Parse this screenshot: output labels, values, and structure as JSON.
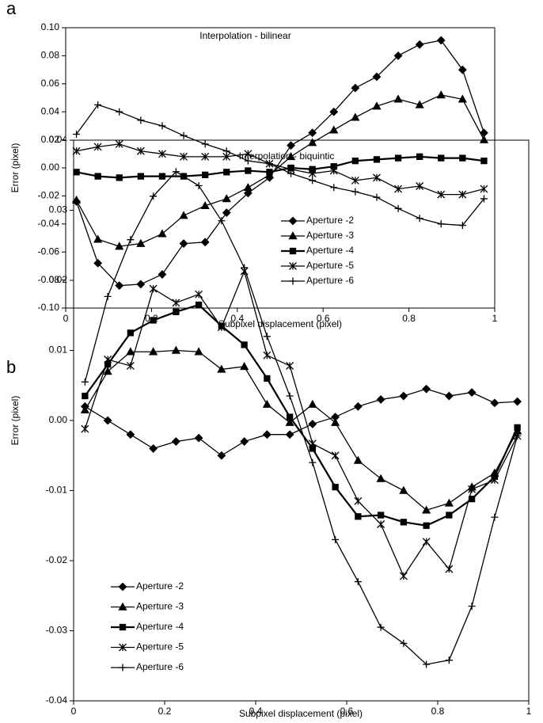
{
  "chart_data": [
    {
      "type": "line",
      "label": "a",
      "title": "Interpolation - bilinear",
      "xlabel": "Subpixel displacement (pixel)",
      "ylabel": "Error (pixel)",
      "x": [
        0.025,
        0.075,
        0.125,
        0.175,
        0.225,
        0.275,
        0.325,
        0.375,
        0.425,
        0.475,
        0.525,
        0.575,
        0.625,
        0.675,
        0.725,
        0.775,
        0.825,
        0.875,
        0.925,
        0.975
      ],
      "xlim": [
        0,
        1
      ],
      "xticks": [
        0,
        0.2,
        0.4,
        0.6,
        0.8,
        1
      ],
      "ylim": [
        -0.1,
        0.1
      ],
      "yticks": [
        {
          "value": -0.1,
          "label": "-0.10"
        },
        -0.08,
        -0.06,
        -0.04,
        -0.02,
        {
          "value": 0,
          "label": "0.00"
        },
        0.02,
        0.04,
        0.06,
        0.08,
        {
          "value": 0.1,
          "label": "0.10"
        }
      ],
      "legend": "center right",
      "grid": false,
      "series": [
        {
          "name": "Aperture -2",
          "color": "#000000",
          "marker": "diamond",
          "values": [
            -0.024,
            -0.068,
            -0.084,
            -0.083,
            -0.076,
            -0.054,
            -0.053,
            -0.032,
            -0.018,
            -0.007,
            0.016,
            0.025,
            0.04,
            0.057,
            0.065,
            0.08,
            0.088,
            0.091,
            0.07,
            0.025
          ]
        },
        {
          "name": "Aperture -3",
          "color": "#000000",
          "marker": "triangle",
          "values": [
            -0.023,
            -0.051,
            -0.056,
            -0.054,
            -0.047,
            -0.034,
            -0.027,
            -0.022,
            -0.014,
            -0.005,
            0.008,
            0.018,
            0.027,
            0.036,
            0.044,
            0.049,
            0.045,
            0.052,
            0.049,
            0.02
          ]
        },
        {
          "name": "Aperture -4",
          "color": "#000000",
          "marker": "square",
          "values": [
            -0.003,
            -0.006,
            -0.007,
            -0.006,
            -0.006,
            -0.006,
            -0.005,
            -0.003,
            -0.002,
            -0.003,
            0.0,
            -0.001,
            0.001,
            0.005,
            0.006,
            0.007,
            0.008,
            0.007,
            0.007,
            0.005
          ]
        },
        {
          "name": "Aperture -5",
          "color": "#000000",
          "marker": "asterisk",
          "values": [
            0.012,
            0.015,
            0.017,
            0.012,
            0.01,
            0.008,
            0.008,
            0.008,
            0.01,
            0.003,
            -0.001,
            -0.004,
            -0.002,
            -0.009,
            -0.007,
            -0.015,
            -0.013,
            -0.019,
            -0.019,
            -0.015
          ]
        },
        {
          "name": "Aperture -6",
          "color": "#000000",
          "marker": "plus",
          "values": [
            0.024,
            0.045,
            0.04,
            0.034,
            0.03,
            0.023,
            0.017,
            0.012,
            0.005,
            0.003,
            -0.004,
            -0.009,
            -0.014,
            -0.017,
            -0.021,
            -0.029,
            -0.036,
            -0.04,
            -0.041,
            -0.022
          ]
        }
      ]
    },
    {
      "type": "line",
      "label": "b",
      "title": "Interpolation - biquintic",
      "xlabel": "Subpixel displacement (pixel)",
      "ylabel": "Error (pixel)",
      "x": [
        0.025,
        0.075,
        0.125,
        0.175,
        0.225,
        0.275,
        0.325,
        0.375,
        0.425,
        0.475,
        0.525,
        0.575,
        0.625,
        0.675,
        0.725,
        0.775,
        0.825,
        0.875,
        0.925,
        0.975
      ],
      "xlim": [
        0,
        1
      ],
      "xticks": [
        0,
        0.2,
        0.4,
        0.6,
        0.8,
        1
      ],
      "ylim": [
        -0.04,
        0.04
      ],
      "yticks": [
        -0.04,
        -0.03,
        -0.02,
        -0.01,
        {
          "value": 0,
          "label": "0.00"
        },
        0.01,
        0.02,
        0.03,
        0.04
      ],
      "legend": "lower left",
      "grid": false,
      "series": [
        {
          "name": "Aperture -2",
          "color": "#000000",
          "marker": "diamond",
          "values": [
            0.002,
            0.0,
            -0.002,
            -0.004,
            -0.003,
            -0.0025,
            -0.005,
            -0.003,
            -0.002,
            -0.002,
            -0.0005,
            0.0005,
            0.002,
            0.003,
            0.0035,
            0.0045,
            0.0035,
            0.004,
            0.0025,
            0.0027
          ]
        },
        {
          "name": "Aperture -3",
          "color": "#000000",
          "marker": "triangle",
          "values": [
            0.0015,
            0.007,
            0.0098,
            0.0098,
            0.01,
            0.0098,
            0.0073,
            0.0077,
            0.0023,
            -0.0003,
            0.0023,
            -0.0003,
            -0.0057,
            -0.0083,
            -0.01,
            -0.0128,
            -0.0118,
            -0.0095,
            -0.0075,
            -0.0015
          ]
        },
        {
          "name": "Aperture -4",
          "color": "#000000",
          "marker": "square",
          "values": [
            0.0035,
            0.008,
            0.0125,
            0.0143,
            0.0155,
            0.0165,
            0.0135,
            0.0108,
            0.006,
            0.0005,
            -0.004,
            -0.0095,
            -0.0137,
            -0.0135,
            -0.0145,
            -0.015,
            -0.0135,
            -0.0112,
            -0.008,
            -0.001
          ]
        },
        {
          "name": "Aperture -5",
          "color": "#000000",
          "marker": "asterisk",
          "values": [
            -0.0012,
            0.0087,
            0.0078,
            0.0188,
            0.0168,
            0.018,
            0.0133,
            0.0213,
            0.0093,
            0.0078,
            -0.0033,
            -0.005,
            -0.0115,
            -0.0148,
            -0.0222,
            -0.0173,
            -0.0212,
            -0.0098,
            -0.0085,
            -0.0022
          ]
        },
        {
          "name": "Aperture -6",
          "color": "#000000",
          "marker": "plus",
          "values": [
            0.0055,
            0.0177,
            0.0258,
            0.032,
            0.0355,
            0.0335,
            0.0285,
            0.0218,
            0.012,
            0.0035,
            -0.006,
            -0.017,
            -0.023,
            -0.0295,
            -0.0318,
            -0.0348,
            -0.0342,
            -0.0265,
            -0.0138,
            -0.0022
          ]
        }
      ]
    }
  ]
}
